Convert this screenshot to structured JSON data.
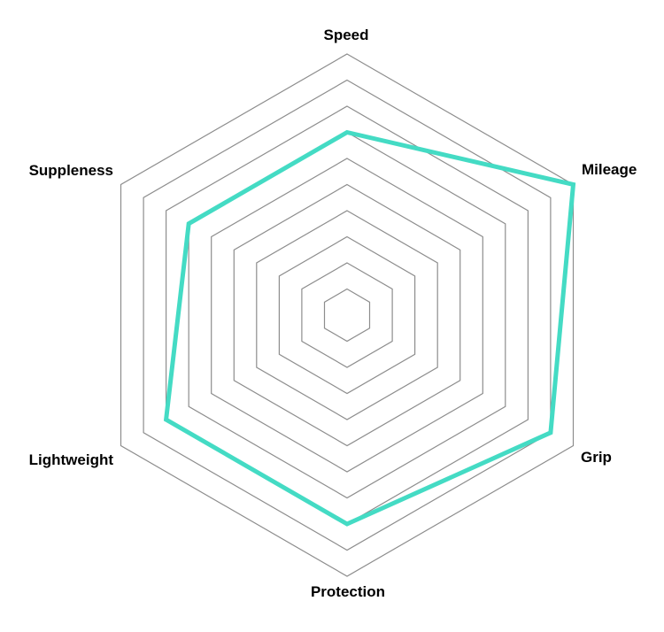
{
  "chart_data": {
    "type": "radar",
    "title": "",
    "categories": [
      "Speed",
      "Mileage",
      "Grip",
      "Protection",
      "Lightweight",
      "Suppleness"
    ],
    "series": [
      {
        "values": [
          7,
          10,
          9,
          8,
          8,
          7
        ],
        "color": "#44dbc4",
        "fill": "none",
        "stroke_width": 5
      }
    ],
    "scale": {
      "min": 0,
      "max": 10,
      "rings": 10
    },
    "grid": {
      "shape": "hexagon",
      "color": "#8d8d8d",
      "stroke_width": 1.2
    },
    "legend": "none",
    "background": "#ffffff",
    "label_color": "#000000"
  }
}
